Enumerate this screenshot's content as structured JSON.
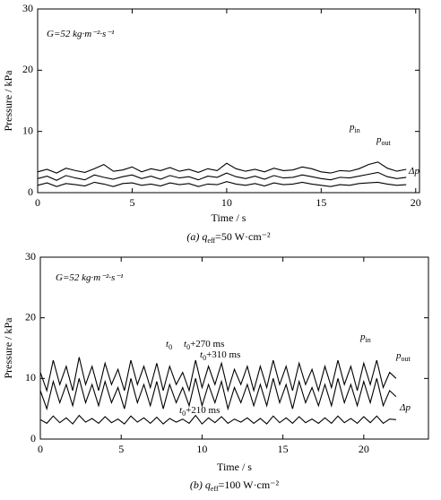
{
  "chart_data": [
    {
      "type": "line",
      "y_label": "Pressure / kPa",
      "x_label": "Time / s",
      "caption": {
        "text": "(a) q",
        "sub": "eff",
        "after": "=50 W·cm⁻²"
      },
      "annotations": [
        {
          "text": "G=52 kg·m⁻²·s⁻¹"
        },
        {
          "text": "p",
          "sub": "in"
        },
        {
          "text": "p",
          "sub": "out"
        },
        {
          "text": "Δp"
        }
      ],
      "xlim": [
        0,
        20.2
      ],
      "ylim": [
        0,
        30
      ],
      "xticks": [
        0,
        5,
        10,
        15,
        20
      ],
      "yticks": [
        0,
        10,
        20,
        30
      ],
      "x": [
        0,
        0.5,
        1,
        1.5,
        2,
        2.5,
        3,
        3.5,
        4,
        4.5,
        5,
        5.5,
        6,
        6.5,
        7,
        7.5,
        8,
        8.5,
        9,
        9.5,
        10,
        10.5,
        11,
        11.5,
        12,
        12.5,
        13,
        13.5,
        14,
        14.5,
        15,
        15.5,
        16,
        16.5,
        17,
        17.5,
        18,
        18.5,
        19,
        19.5
      ],
      "series": [
        {
          "color": "#000000",
          "values": [
            3.4,
            3.8,
            3.2,
            4.0,
            3.6,
            3.3,
            3.9,
            4.6,
            3.5,
            3.7,
            4.2,
            3.4,
            3.9,
            3.6,
            4.1,
            3.5,
            3.8,
            3.3,
            3.9,
            3.6,
            4.8,
            3.9,
            3.5,
            3.8,
            3.4,
            4.0,
            3.6,
            3.7,
            4.2,
            3.9,
            3.4,
            3.2,
            3.6,
            3.5,
            3.9,
            4.6,
            5.0,
            4.0,
            3.5,
            3.8
          ]
        },
        {
          "color": "#000000",
          "values": [
            2.3,
            2.7,
            2.0,
            2.8,
            2.4,
            2.1,
            2.9,
            2.5,
            2.2,
            2.6,
            2.9,
            2.3,
            2.7,
            2.2,
            2.8,
            2.4,
            2.6,
            2.1,
            2.7,
            2.5,
            3.2,
            2.6,
            2.3,
            2.7,
            2.2,
            2.8,
            2.4,
            2.5,
            2.9,
            2.6,
            2.3,
            2.1,
            2.5,
            2.4,
            2.7,
            3.0,
            3.3,
            2.6,
            2.3,
            2.5
          ]
        },
        {
          "color": "#000000",
          "values": [
            1.2,
            1.6,
            1.0,
            1.5,
            1.3,
            1.1,
            1.7,
            1.4,
            1.0,
            1.5,
            1.6,
            1.2,
            1.4,
            1.1,
            1.6,
            1.3,
            1.5,
            1.0,
            1.4,
            1.3,
            1.8,
            1.4,
            1.2,
            1.5,
            1.1,
            1.6,
            1.3,
            1.4,
            1.7,
            1.4,
            1.2,
            1.0,
            1.3,
            1.2,
            1.5,
            1.6,
            1.7,
            1.4,
            1.2,
            1.3
          ]
        }
      ]
    },
    {
      "type": "line",
      "y_label": "Pressure / kPa",
      "x_label": "Time / s",
      "caption": {
        "text": "(b) q",
        "sub": "eff",
        "after": "=100 W·cm⁻²"
      },
      "annotations": [
        {
          "text": "G=52 kg·m⁻²·s⁻¹"
        },
        {
          "text": "t",
          "sub": "0"
        },
        {
          "text": "t",
          "sub": "0",
          "after": "+270 ms"
        },
        {
          "text": "t",
          "sub": "0",
          "after": "+310 ms"
        },
        {
          "text": "t",
          "sub": "0",
          "after": "+210 ms"
        },
        {
          "text": "p",
          "sub": "in"
        },
        {
          "text": "p",
          "sub": "out"
        },
        {
          "text": "Δp"
        }
      ],
      "xlim": [
        0,
        24
      ],
      "ylim": [
        0,
        30
      ],
      "xticks": [
        0,
        5,
        10,
        15,
        20
      ],
      "yticks": [
        0,
        10,
        20,
        30
      ],
      "x": [
        0,
        0.4,
        0.8,
        1.2,
        1.6,
        2,
        2.4,
        2.8,
        3.2,
        3.6,
        4,
        4.4,
        4.8,
        5.2,
        5.6,
        6,
        6.4,
        6.8,
        7.2,
        7.6,
        8,
        8.4,
        8.8,
        9.2,
        9.6,
        10,
        10.4,
        10.8,
        11.2,
        11.6,
        12,
        12.4,
        12.8,
        13.2,
        13.6,
        14,
        14.4,
        14.8,
        15.2,
        15.6,
        16,
        16.4,
        16.8,
        17.2,
        17.6,
        18,
        18.4,
        18.8,
        19.2,
        19.6,
        20,
        20.4,
        20.8,
        21.2,
        21.6,
        22
      ],
      "series": [
        {
          "color": "#000000",
          "values": [
            11,
            8,
            13,
            9,
            12,
            8,
            13.5,
            9,
            12,
            8,
            12.5,
            9,
            11.5,
            8,
            13,
            9,
            12,
            8.5,
            12.5,
            8,
            12,
            9,
            11,
            8,
            13,
            8.5,
            12,
            9,
            12.5,
            8,
            11.5,
            9,
            12,
            8,
            12,
            8.5,
            13,
            9,
            12,
            8,
            12.5,
            9,
            11.5,
            8,
            12,
            8.5,
            13,
            9,
            12,
            8,
            12.5,
            9,
            13,
            8.5,
            11,
            10
          ]
        },
        {
          "color": "#000000",
          "values": [
            8,
            5,
            9.5,
            6,
            9,
            5.5,
            10,
            6,
            9,
            5.5,
            9.5,
            6,
            8.5,
            5,
            10,
            6,
            9,
            5.5,
            9.5,
            5,
            9,
            6,
            8.5,
            5.5,
            10,
            5.5,
            9,
            6,
            9.5,
            5,
            8.5,
            6,
            9,
            5.5,
            9,
            5.5,
            10,
            6,
            9,
            5,
            9.5,
            6,
            8.5,
            5.5,
            9,
            5.5,
            10,
            6,
            9,
            5.5,
            9.5,
            6,
            10,
            5.5,
            8,
            7
          ]
        },
        {
          "color": "#000000",
          "values": [
            3.2,
            2.6,
            3.8,
            2.7,
            3.5,
            2.5,
            3.9,
            2.8,
            3.4,
            2.6,
            3.7,
            2.7,
            3.3,
            2.5,
            3.8,
            2.8,
            3.5,
            2.6,
            3.6,
            2.5,
            3.4,
            2.8,
            3.3,
            2.6,
            3.9,
            2.5,
            3.5,
            2.7,
            3.7,
            2.6,
            3.3,
            2.8,
            3.5,
            2.6,
            3.4,
            2.5,
            3.8,
            2.7,
            3.5,
            2.6,
            3.7,
            2.7,
            3.3,
            2.6,
            3.5,
            2.6,
            3.8,
            2.7,
            3.4,
            2.6,
            3.7,
            2.7,
            3.8,
            2.6,
            3.3,
            3.2
          ]
        }
      ]
    }
  ]
}
